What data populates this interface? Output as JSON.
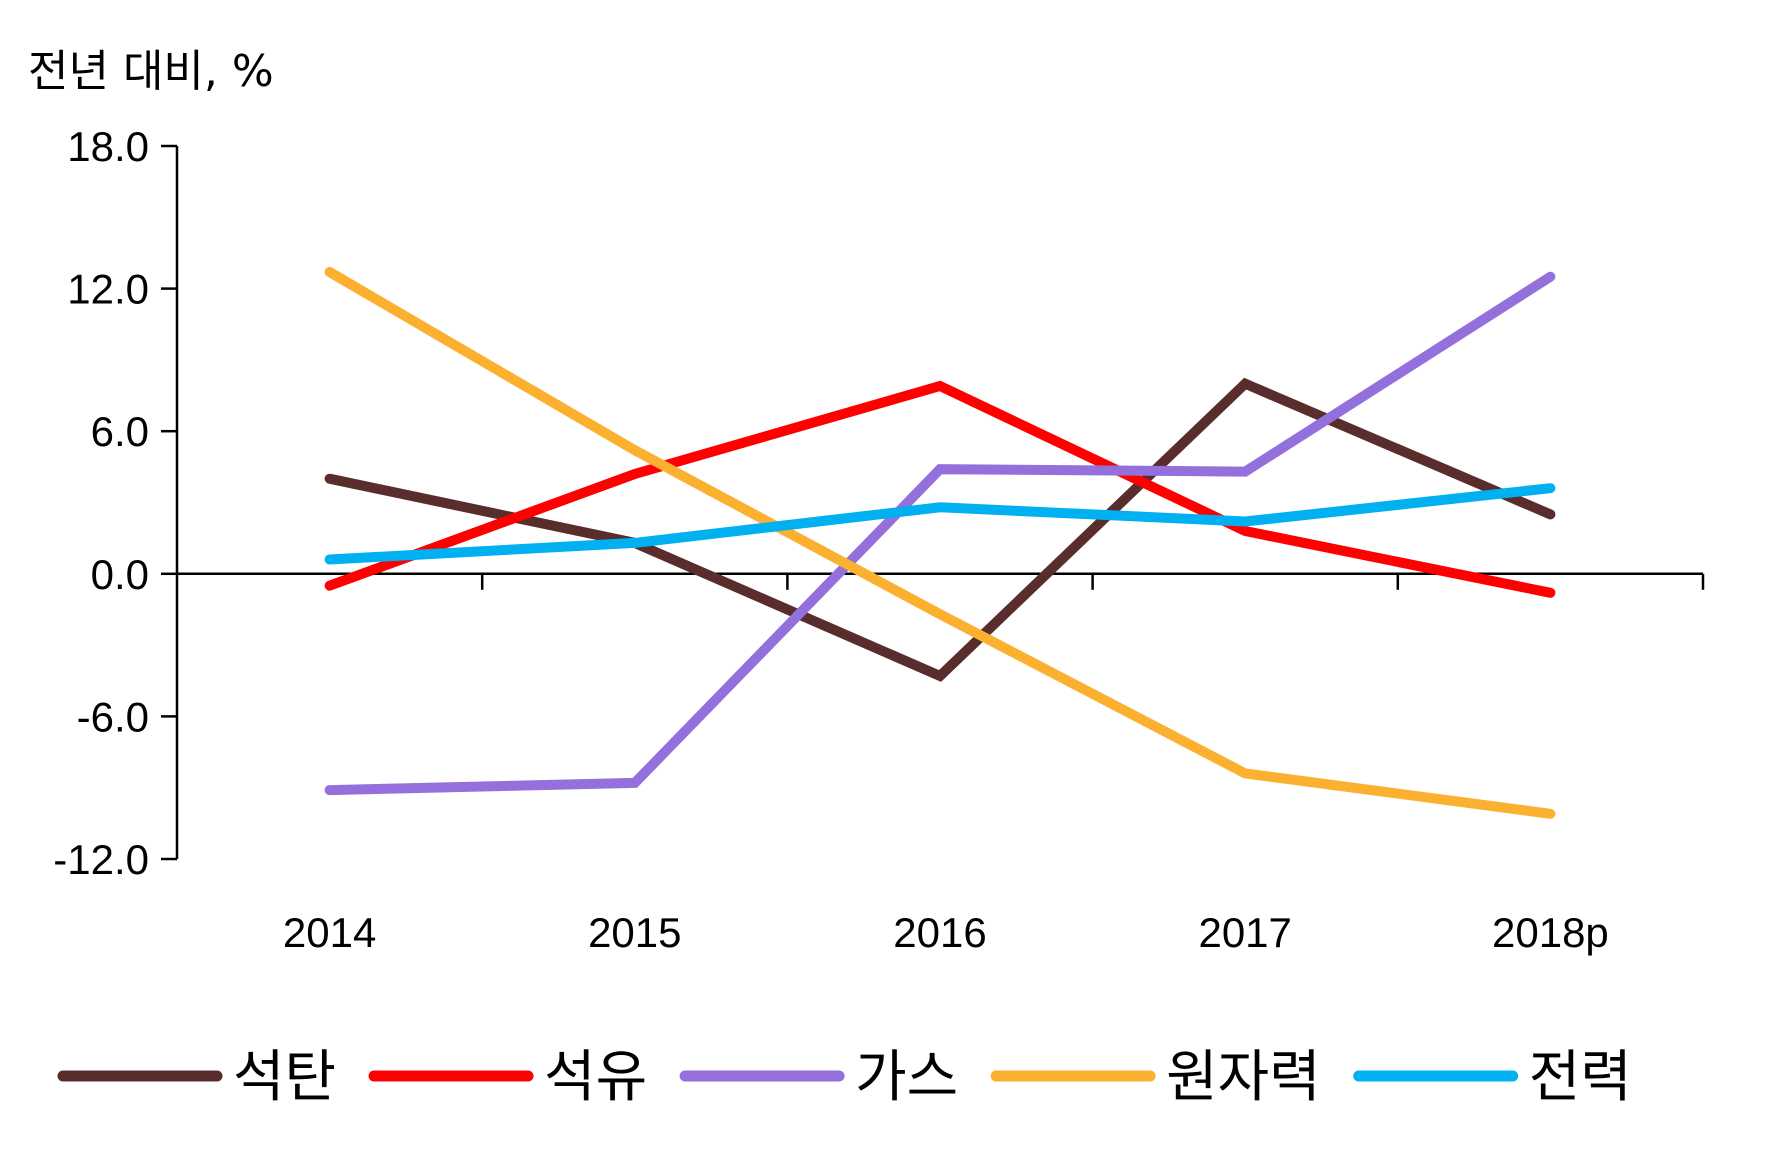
{
  "chart_data": {
    "type": "line",
    "ylabel": "전년 대비, %",
    "categories": [
      "2014",
      "2015",
      "2016",
      "2017",
      "2018p"
    ],
    "ylim": [
      -12,
      18
    ],
    "yticks": [
      18,
      12,
      6,
      0,
      -6,
      -12
    ],
    "ytick_labels": [
      "18.0",
      "12.0",
      "6.0",
      "0.0",
      "-6.0",
      "-12.0"
    ],
    "grid": false,
    "legend_position": "bottom",
    "series": [
      {
        "name": "석탄",
        "color": "#5a2d2d",
        "values": [
          4.0,
          1.3,
          -4.3,
          8.0,
          2.5
        ]
      },
      {
        "name": "석유",
        "color": "#ff0000",
        "values": [
          -0.5,
          4.2,
          7.9,
          1.8,
          -0.8
        ]
      },
      {
        "name": "가스",
        "color": "#9370db",
        "values": [
          -9.1,
          -8.8,
          4.4,
          4.3,
          12.5
        ]
      },
      {
        "name": "원자력",
        "color": "#fbb030",
        "values": [
          12.7,
          5.2,
          -1.7,
          -8.4,
          -10.1
        ]
      },
      {
        "name": "전력",
        "color": "#00b0f0",
        "values": [
          0.6,
          1.3,
          2.8,
          2.2,
          3.6
        ]
      }
    ]
  }
}
